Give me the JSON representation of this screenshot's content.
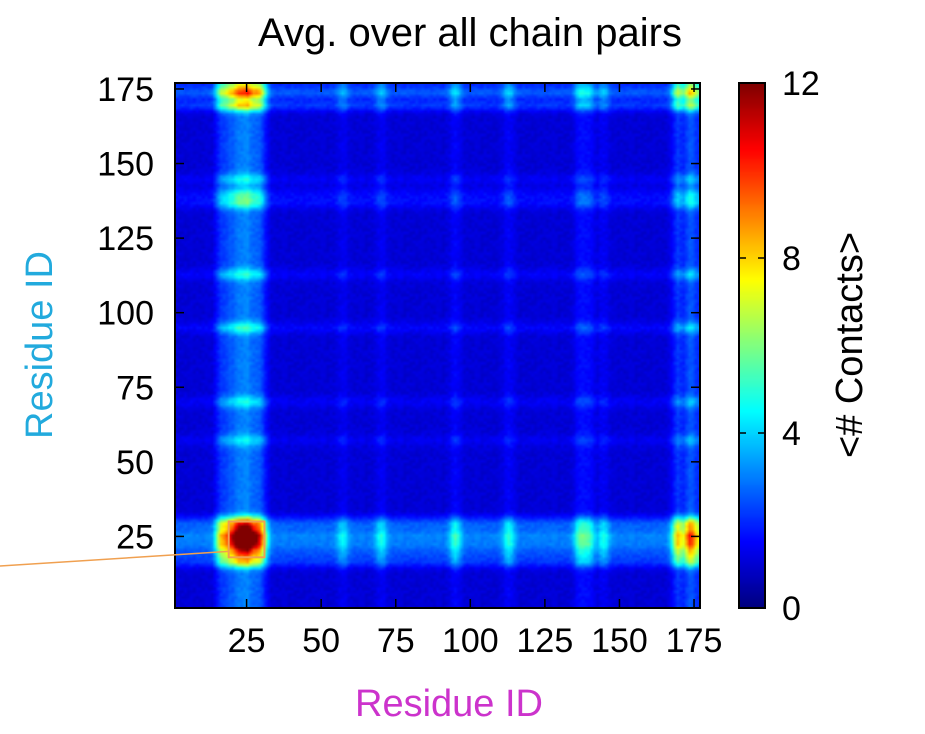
{
  "chart_data": {
    "type": "heatmap",
    "title": "Avg. over all chain pairs",
    "xlabel": "Residue ID",
    "ylabel": "Residue ID",
    "xlabel_color": "#cc33cc",
    "ylabel_color": "#22aadd",
    "xlim": [
      1,
      177
    ],
    "ylim": [
      1,
      177
    ],
    "x_ticks": [
      25,
      50,
      75,
      100,
      125,
      150,
      175
    ],
    "y_ticks": [
      25,
      50,
      75,
      100,
      125,
      150,
      175
    ],
    "colorbar": {
      "label": "<# Contacts>",
      "range": [
        0,
        12
      ],
      "ticks": [
        0,
        4,
        8,
        12
      ],
      "colormap": "jet"
    },
    "background_value": 1.0,
    "hot_residues": [
      {
        "residue": 16,
        "level": 1.8
      },
      {
        "residue": 19,
        "level": 2.2
      },
      {
        "residue": 22,
        "level": 3.0
      },
      {
        "residue": 25,
        "level": 3.2
      },
      {
        "residue": 28,
        "level": 2.2
      },
      {
        "residue": 30,
        "level": 1.4
      },
      {
        "residue": 57,
        "level": 0.6
      },
      {
        "residue": 70,
        "level": 0.7
      },
      {
        "residue": 95,
        "level": 0.9
      },
      {
        "residue": 113,
        "level": 0.8
      },
      {
        "residue": 137,
        "level": 1.0
      },
      {
        "residue": 140,
        "level": 0.9
      },
      {
        "residue": 145,
        "level": 0.7
      },
      {
        "residue": 170,
        "level": 2.0
      },
      {
        "residue": 174,
        "level": 2.6
      },
      {
        "residue": 177,
        "level": 1.5
      }
    ],
    "peak": {
      "x": 24,
      "y": 24,
      "value": 11.5
    },
    "highlight_box": {
      "x": [
        19,
        31
      ],
      "y": [
        18,
        30
      ],
      "color": "#f0a050"
    }
  }
}
